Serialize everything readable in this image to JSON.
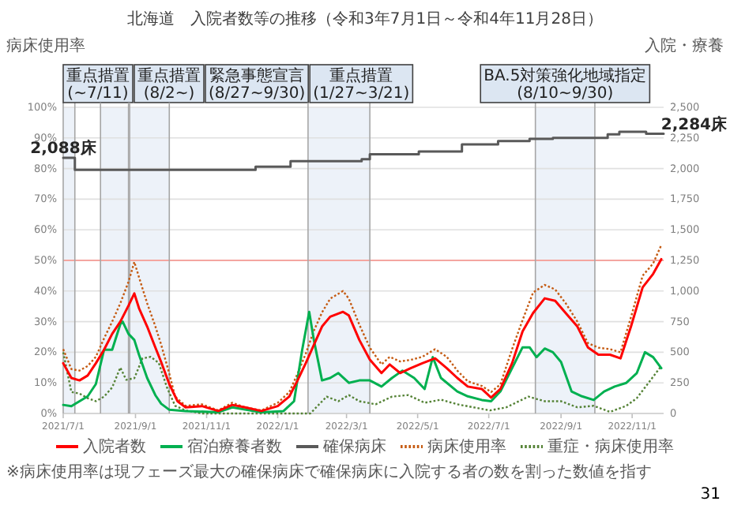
{
  "chart_data": {
    "type": "line",
    "title": "北海道　入院者数等の推移（令和3年7月1日～令和4年11月28日）",
    "ylabel": "病床使用率",
    "y2label": "入院・療養",
    "xlim": [
      "2021-07-01",
      "2022-11-28"
    ],
    "ylim": [
      0,
      100
    ],
    "y2lim": [
      0,
      2500
    ],
    "yticks": [
      {
        "value": 0,
        "label": "0%"
      },
      {
        "value": 10,
        "label": "10%"
      },
      {
        "value": 20,
        "label": "20%"
      },
      {
        "value": 30,
        "label": "30%"
      },
      {
        "value": 40,
        "label": "40%"
      },
      {
        "value": 50,
        "label": "50%"
      },
      {
        "value": 60,
        "label": "60%"
      },
      {
        "value": 70,
        "label": "70%"
      },
      {
        "value": 80,
        "label": "80%"
      },
      {
        "value": 90,
        "label": "90%"
      },
      {
        "value": 100,
        "label": "100%"
      }
    ],
    "y2ticks": [
      0,
      250,
      500,
      750,
      {
        "value": 1000,
        "label": "1,000"
      },
      {
        "value": 1250,
        "label": "1,250"
      },
      {
        "value": 1500,
        "label": "1,500"
      },
      {
        "value": 1750,
        "label": "1,750"
      },
      {
        "value": 2000,
        "label": "2,000"
      },
      {
        "value": 2250,
        "label": "2,250"
      },
      {
        "value": 2500,
        "label": "2,500"
      }
    ],
    "xticks": [
      {
        "value": "2021-07-01",
        "label": "2021/7/1"
      },
      {
        "value": "2021-09-01",
        "label": "2021/9/1"
      },
      {
        "value": "2021-11-01",
        "label": "2021/11/1"
      },
      {
        "value": "2022-01-01",
        "label": "2022/1/1"
      },
      {
        "value": "2022-03-01",
        "label": "2022/3/1"
      },
      {
        "value": "2022-05-01",
        "label": "2022/5/1"
      },
      {
        "value": "2022-07-01",
        "label": "2022/7/1"
      },
      {
        "value": "2022-09-01",
        "label": "2022/9/1"
      },
      {
        "value": "2022-11-01",
        "label": "2022/11/1"
      }
    ],
    "grid": "y",
    "legend": "bottom",
    "series": [
      {
        "name": "入院者数",
        "color": "#ff0000",
        "axis": "y2",
        "x": [
          "2021-07-01",
          "2021-07-08",
          "2021-07-15",
          "2021-07-22",
          "2021-07-29",
          "2021-08-05",
          "2021-08-12",
          "2021-08-19",
          "2021-08-26",
          "2021-08-31",
          "2021-09-04",
          "2021-09-11",
          "2021-09-18",
          "2021-09-23",
          "2021-09-30",
          "2021-10-07",
          "2021-10-14",
          "2021-10-28",
          "2021-11-11",
          "2021-11-23",
          "2021-12-04",
          "2021-12-18",
          "2022-01-01",
          "2022-01-11",
          "2022-01-18",
          "2022-01-25",
          "2022-02-01",
          "2022-02-08",
          "2022-02-15",
          "2022-02-26",
          "2022-03-03",
          "2022-03-12",
          "2022-03-21",
          "2022-03-31",
          "2022-04-07",
          "2022-04-16",
          "2022-04-25",
          "2022-05-05",
          "2022-05-16",
          "2022-05-26",
          "2022-06-04",
          "2022-06-13",
          "2022-06-25",
          "2022-07-03",
          "2022-07-11",
          "2022-07-21",
          "2022-07-30",
          "2022-08-08",
          "2022-08-18",
          "2022-08-27",
          "2022-09-05",
          "2022-09-15",
          "2022-09-24",
          "2022-10-03",
          "2022-10-13",
          "2022-10-22",
          "2022-10-31",
          "2022-11-10",
          "2022-11-19",
          "2022-11-26"
        ],
        "values": [
          410,
          290,
          270,
          310,
          410,
          520,
          650,
          750,
          880,
          980,
          860,
          710,
          540,
          420,
          240,
          100,
          50,
          60,
          20,
          70,
          50,
          20,
          60,
          140,
          270,
          410,
          560,
          710,
          790,
          830,
          800,
          600,
          440,
          330,
          400,
          330,
          370,
          410,
          450,
          370,
          290,
          220,
          200,
          130,
          200,
          410,
          670,
          820,
          940,
          920,
          820,
          710,
          540,
          480,
          480,
          450,
          710,
          1030,
          1140,
          1260
        ]
      },
      {
        "name": "宿泊療養者数",
        "color": "#00b050",
        "axis": "y2",
        "x": [
          "2021-07-01",
          "2021-07-08",
          "2021-07-15",
          "2021-07-22",
          "2021-07-29",
          "2021-08-05",
          "2021-08-12",
          "2021-08-19",
          "2021-08-21",
          "2021-08-26",
          "2021-08-31",
          "2021-09-04",
          "2021-09-11",
          "2021-09-18",
          "2021-09-23",
          "2021-09-30",
          "2021-10-14",
          "2021-11-11",
          "2021-11-23",
          "2021-12-18",
          "2022-01-06",
          "2022-01-15",
          "2022-01-22",
          "2022-01-28",
          "2022-02-01",
          "2022-02-08",
          "2022-02-15",
          "2022-02-22",
          "2022-03-03",
          "2022-03-12",
          "2022-03-21",
          "2022-03-31",
          "2022-04-09",
          "2022-04-18",
          "2022-04-28",
          "2022-05-07",
          "2022-05-14",
          "2022-05-21",
          "2022-06-04",
          "2022-06-13",
          "2022-06-25",
          "2022-07-03",
          "2022-07-11",
          "2022-07-21",
          "2022-07-30",
          "2022-08-05",
          "2022-08-11",
          "2022-08-18",
          "2022-08-25",
          "2022-09-01",
          "2022-09-10",
          "2022-09-19",
          "2022-09-29",
          "2022-10-08",
          "2022-10-17",
          "2022-10-27",
          "2022-11-05",
          "2022-11-12",
          "2022-11-19",
          "2022-11-26"
        ],
        "values": [
          70,
          60,
          100,
          140,
          240,
          520,
          520,
          730,
          750,
          650,
          600,
          480,
          290,
          150,
          80,
          30,
          20,
          10,
          50,
          10,
          20,
          100,
          520,
          830,
          600,
          270,
          290,
          330,
          250,
          270,
          270,
          220,
          290,
          350,
          290,
          200,
          460,
          290,
          180,
          140,
          110,
          100,
          180,
          370,
          540,
          540,
          460,
          530,
          500,
          420,
          180,
          140,
          110,
          180,
          220,
          250,
          330,
          500,
          460,
          370
        ]
      },
      {
        "name": "確保病床",
        "color": "#595959",
        "axis": "y2",
        "type": "step",
        "x": [
          "2021-07-01",
          "2021-07-11",
          "2021-12-13",
          "2022-01-12",
          "2022-03-14",
          "2022-03-21",
          "2022-05-02",
          "2022-06-08",
          "2022-07-09",
          "2022-08-05",
          "2022-08-25",
          "2022-10-11",
          "2022-10-21",
          "2022-11-13",
          "2022-11-28"
        ],
        "values": [
          2088,
          1990,
          2015,
          2060,
          2076,
          2117,
          2140,
          2197,
          2224,
          2242,
          2250,
          2280,
          2300,
          2284,
          2284
        ]
      },
      {
        "name": "病床使用率",
        "color": "#c55a11",
        "axis": "y",
        "line_style": "dotted",
        "x": [
          "2021-07-01",
          "2021-07-08",
          "2021-07-15",
          "2021-07-22",
          "2021-07-29",
          "2021-08-05",
          "2021-08-12",
          "2021-08-19",
          "2021-08-26",
          "2021-08-31",
          "2021-09-04",
          "2021-09-11",
          "2021-09-18",
          "2021-09-23",
          "2021-09-30",
          "2021-10-05",
          "2021-10-14",
          "2021-10-28",
          "2021-11-11",
          "2021-11-23",
          "2021-12-04",
          "2021-12-18",
          "2022-01-01",
          "2022-01-11",
          "2022-01-18",
          "2022-01-25",
          "2022-02-01",
          "2022-02-08",
          "2022-02-15",
          "2022-02-26",
          "2022-03-03",
          "2022-03-12",
          "2022-03-21",
          "2022-03-31",
          "2022-04-07",
          "2022-04-16",
          "2022-04-25",
          "2022-05-05",
          "2022-05-16",
          "2022-05-26",
          "2022-06-04",
          "2022-06-13",
          "2022-06-25",
          "2022-07-03",
          "2022-07-11",
          "2022-07-21",
          "2022-07-30",
          "2022-08-08",
          "2022-08-18",
          "2022-08-27",
          "2022-09-05",
          "2022-09-15",
          "2022-09-24",
          "2022-10-03",
          "2022-10-13",
          "2022-10-22",
          "2022-10-31",
          "2022-11-10",
          "2022-11-19",
          "2022-11-26"
        ],
        "values": [
          21,
          14.5,
          14,
          15.5,
          18.5,
          24.5,
          30,
          36,
          43,
          49.5,
          44.5,
          36,
          28.5,
          22.5,
          13,
          5.5,
          2.5,
          3,
          1,
          3.5,
          2,
          1,
          3.5,
          7,
          13,
          19.5,
          27,
          33,
          37.5,
          40,
          37.5,
          29,
          21.5,
          16,
          18.5,
          17,
          17.5,
          18.5,
          21,
          18.5,
          14,
          10.5,
          9,
          7,
          9.5,
          21,
          30.5,
          39.5,
          42,
          40.5,
          36,
          30,
          23,
          21.5,
          21,
          20,
          31.5,
          45,
          49,
          55
        ]
      },
      {
        "name": "重症・病床使用率",
        "color": "#548235",
        "axis": "y",
        "line_style": "dotted",
        "x": [
          "2021-07-01",
          "2021-07-08",
          "2021-07-15",
          "2021-07-22",
          "2021-07-29",
          "2021-08-05",
          "2021-08-12",
          "2021-08-19",
          "2021-08-24",
          "2021-08-31",
          "2021-09-07",
          "2021-09-14",
          "2021-09-21",
          "2021-09-28",
          "2021-10-05",
          "2021-10-14",
          "2021-10-28",
          "2022-01-29",
          "2022-02-03",
          "2022-02-12",
          "2022-02-22",
          "2022-03-03",
          "2022-03-12",
          "2022-03-26",
          "2022-04-09",
          "2022-04-23",
          "2022-05-07",
          "2022-05-21",
          "2022-06-04",
          "2022-06-18",
          "2022-07-02",
          "2022-07-16",
          "2022-08-04",
          "2022-08-18",
          "2022-09-01",
          "2022-09-15",
          "2022-09-29",
          "2022-10-13",
          "2022-10-27",
          "2022-11-05",
          "2022-11-14",
          "2022-11-26"
        ],
        "values": [
          20,
          7,
          6.5,
          5,
          4,
          5.5,
          8.5,
          15,
          11,
          11.5,
          18,
          18.5,
          16.5,
          8.5,
          2.5,
          1,
          0,
          0,
          2,
          5.5,
          4,
          6,
          4,
          3,
          5.5,
          6,
          3.5,
          4.5,
          3,
          2,
          1,
          2,
          5.5,
          4,
          4,
          2,
          2.5,
          0.5,
          2.5,
          5,
          9.5,
          15.5
        ]
      }
    ],
    "ref_lines": [
      {
        "axis": "y",
        "value": 50,
        "color": "#f4a6a0"
      }
    ],
    "bands": [
      {
        "axis": "x",
        "from": "2021-07-01",
        "to": "2021-07-11",
        "label": "重点措置\n(~7/11)",
        "color": "#edf2f9"
      },
      {
        "axis": "x",
        "from": "2021-08-02",
        "to": "2021-08-26",
        "label": "重点措置\n(8/2~)",
        "color": "#edf2f9"
      },
      {
        "axis": "x",
        "from": "2021-08-27",
        "to": "2021-09-30",
        "label": "緊急事態宣言\n(8/27~9/30)",
        "color": "#edf2f9"
      },
      {
        "axis": "x",
        "from": "2022-01-27",
        "to": "2022-03-21",
        "label": "重点措置\n(1/27~3/21)",
        "color": "#edf2f9"
      },
      {
        "axis": "x",
        "from": "2022-08-10",
        "to": "2022-09-30",
        "label": "BA.5対策強化地域指定\n(8/10~9/30)",
        "color": "#edf2f9"
      }
    ],
    "annotations": [
      "2,088床",
      "2,284床",
      "※病床使用率は現フェーズ最大の確保病床で確保病床に入院する者の数を割った数値を指す",
      "31"
    ]
  }
}
